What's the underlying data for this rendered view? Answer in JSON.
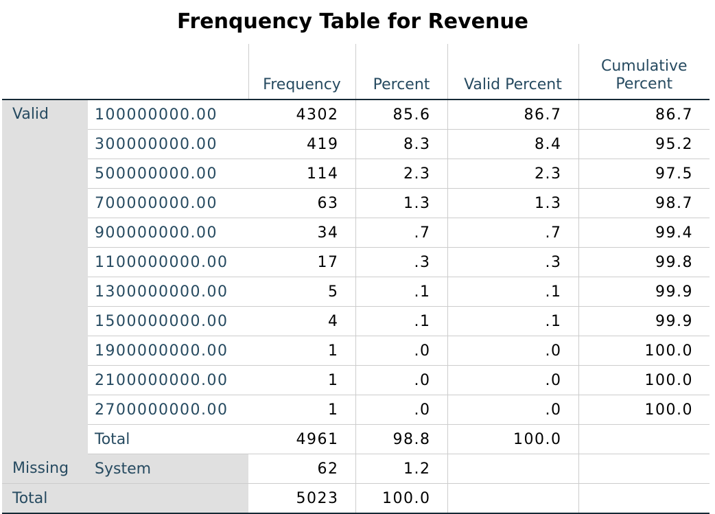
{
  "title": "Frenquency Table for Revenue",
  "headers": {
    "frequency": "Frequency",
    "percent": "Percent",
    "valid_percent": "Valid Percent",
    "cumulative_line1": "Cumulative",
    "cumulative_line2": "Percent"
  },
  "valid_label": "Valid",
  "valid_rows": [
    {
      "value": "100000000.00",
      "frequency": "4302",
      "percent": "85.6",
      "valid_percent": "86.7",
      "cumulative": "86.7"
    },
    {
      "value": "300000000.00",
      "frequency": "419",
      "percent": "8.3",
      "valid_percent": "8.4",
      "cumulative": "95.2"
    },
    {
      "value": "500000000.00",
      "frequency": "114",
      "percent": "2.3",
      "valid_percent": "2.3",
      "cumulative": "97.5"
    },
    {
      "value": "700000000.00",
      "frequency": "63",
      "percent": "1.3",
      "valid_percent": "1.3",
      "cumulative": "98.7"
    },
    {
      "value": "900000000.00",
      "frequency": "34",
      "percent": ".7",
      "valid_percent": ".7",
      "cumulative": "99.4"
    },
    {
      "value": "1100000000.00",
      "frequency": "17",
      "percent": ".3",
      "valid_percent": ".3",
      "cumulative": "99.8"
    },
    {
      "value": "1300000000.00",
      "frequency": "5",
      "percent": ".1",
      "valid_percent": ".1",
      "cumulative": "99.9"
    },
    {
      "value": "1500000000.00",
      "frequency": "4",
      "percent": ".1",
      "valid_percent": ".1",
      "cumulative": "99.9"
    },
    {
      "value": "1900000000.00",
      "frequency": "1",
      "percent": ".0",
      "valid_percent": ".0",
      "cumulative": "100.0"
    },
    {
      "value": "2100000000.00",
      "frequency": "1",
      "percent": ".0",
      "valid_percent": ".0",
      "cumulative": "100.0"
    },
    {
      "value": "2700000000.00",
      "frequency": "1",
      "percent": ".0",
      "valid_percent": ".0",
      "cumulative": "100.0"
    }
  ],
  "valid_total": {
    "label": "Total",
    "frequency": "4961",
    "percent": "98.8",
    "valid_percent": "100.0"
  },
  "missing": {
    "label": "Missing",
    "sublabel": "System",
    "frequency": "62",
    "percent": "1.2"
  },
  "grand_total": {
    "label": "Total",
    "frequency": "5023",
    "percent": "100.0"
  }
}
